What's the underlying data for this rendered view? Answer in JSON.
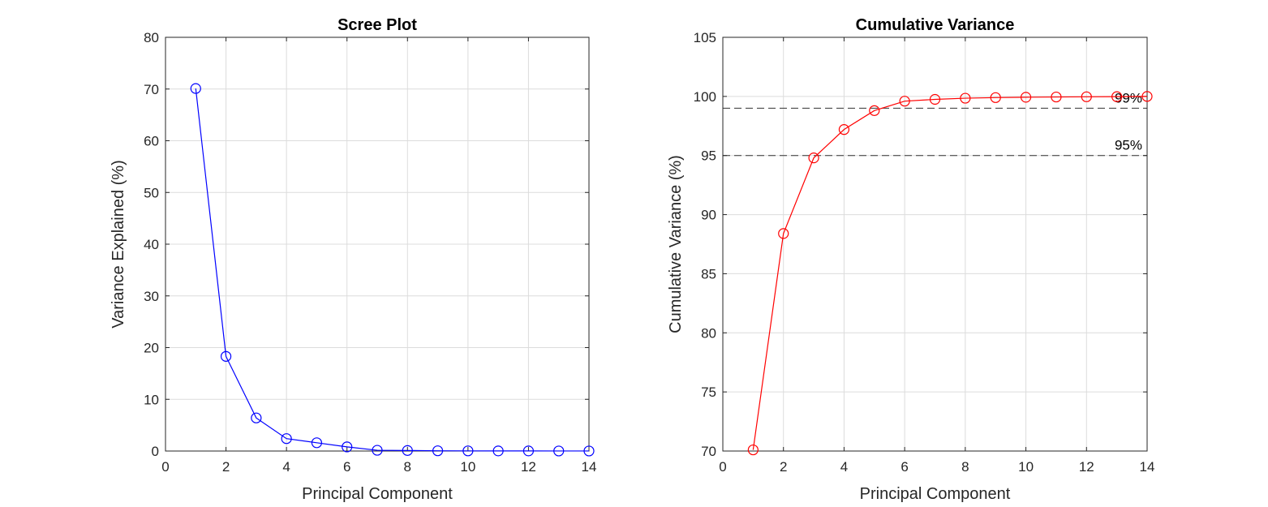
{
  "chart_data": [
    {
      "type": "line",
      "title": "Scree Plot",
      "xlabel": "Principal Component",
      "ylabel": "Variance Explained (%)",
      "xlim": [
        0,
        14
      ],
      "ylim": [
        0,
        80
      ],
      "xticks": [
        0,
        2,
        4,
        6,
        8,
        10,
        12,
        14
      ],
      "yticks": [
        0,
        10,
        20,
        30,
        40,
        50,
        60,
        70,
        80
      ],
      "grid": true,
      "series": [
        {
          "color": "#0000ff",
          "marker": "circle",
          "x": [
            1,
            2,
            3,
            4,
            5,
            6,
            7,
            8,
            9,
            10,
            11,
            12,
            13,
            14
          ],
          "values": [
            70.1,
            18.3,
            6.4,
            2.4,
            1.6,
            0.8,
            0.15,
            0.1,
            0.05,
            0.03,
            0.02,
            0.02,
            0.01,
            0.01
          ]
        }
      ],
      "reference_lines": []
    },
    {
      "type": "line",
      "title": "Cumulative Variance",
      "xlabel": "Principal Component",
      "ylabel": "Cumulative Variance (%)",
      "xlim": [
        0,
        14
      ],
      "ylim": [
        70,
        105
      ],
      "xticks": [
        0,
        2,
        4,
        6,
        8,
        10,
        12,
        14
      ],
      "yticks": [
        70,
        75,
        80,
        85,
        90,
        95,
        100,
        105
      ],
      "grid": true,
      "series": [
        {
          "color": "#ff0000",
          "marker": "circle",
          "x": [
            1,
            2,
            3,
            4,
            5,
            6,
            7,
            8,
            9,
            10,
            11,
            12,
            13,
            14
          ],
          "values": [
            70.1,
            88.4,
            94.8,
            97.2,
            98.8,
            99.6,
            99.75,
            99.85,
            99.9,
            99.93,
            99.95,
            99.97,
            99.98,
            100.0
          ]
        }
      ],
      "reference_lines": [
        {
          "y": 99,
          "label": "99%",
          "color": "#000000",
          "style": "dashed"
        },
        {
          "y": 95,
          "label": "95%",
          "color": "#000000",
          "style": "dashed"
        }
      ]
    }
  ]
}
